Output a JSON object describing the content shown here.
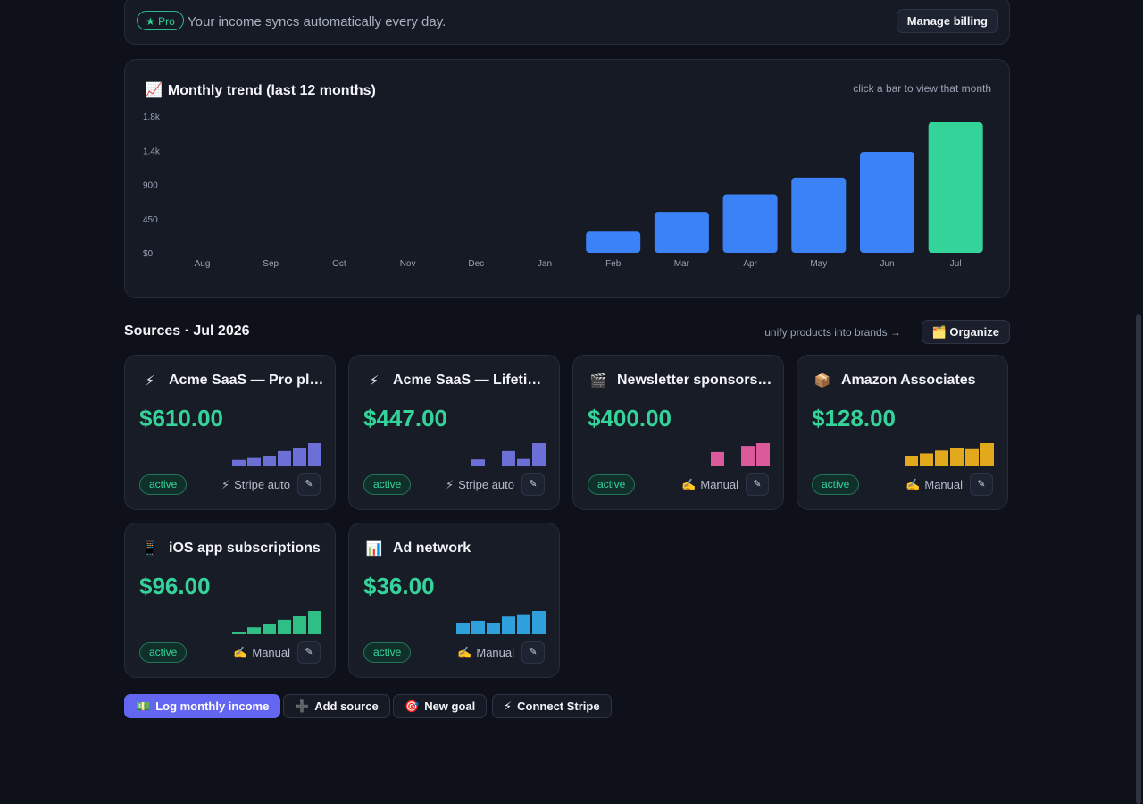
{
  "banner": {
    "pro_label": "★ Pro",
    "text": "Your income syncs automatically every day.",
    "billing_label": "Manage billing"
  },
  "chart": {
    "title_emoji": "📈",
    "title": "Monthly trend (last 12 months)",
    "hint": "click a bar to view that month"
  },
  "chart_data": {
    "type": "bar",
    "title": "Monthly trend (last 12 months)",
    "categories": [
      "Aug",
      "Sep",
      "Oct",
      "Nov",
      "Dec",
      "Jan",
      "Feb",
      "Mar",
      "Apr",
      "May",
      "Jun",
      "Jul"
    ],
    "values": [
      0,
      0,
      0,
      0,
      0,
      0,
      280,
      540,
      770,
      990,
      1330,
      1717
    ],
    "y_ticks": [
      "$0",
      "450",
      "900",
      "1.4k",
      "1.8k"
    ],
    "y_tick_values": [
      0,
      450,
      900,
      1350,
      1800
    ],
    "ylim": [
      0,
      1800
    ],
    "highlight_index": 11,
    "colors": {
      "bar": "#3b82f6",
      "highlight": "#34d399"
    },
    "grid": false
  },
  "sources": {
    "title": "Sources · Jul 2026",
    "organize_hint": "unify products into brands →",
    "organize_icon": "🗂️",
    "organize_label": "Organize",
    "cards": [
      {
        "icon": "⚡",
        "title": "Acme SaaS — Pro plan",
        "amount": "$610.00",
        "status": "active",
        "source_icon": "⚡",
        "source": "Stripe auto",
        "edit_icon": "✎",
        "spark_color": "#6b6fd6",
        "spark": [
          0.28,
          0.36,
          0.46,
          0.66,
          0.8,
          1.0
        ]
      },
      {
        "icon": "⚡",
        "title": "Acme SaaS — Lifetime deal",
        "amount": "$447.00",
        "status": "active",
        "source_icon": "⚡",
        "source": "Stripe auto",
        "edit_icon": "✎",
        "spark_color": "#6b6fd6",
        "spark": [
          0,
          0,
          0.3,
          0,
          0.66,
          0.32,
          1.0
        ]
      },
      {
        "icon": "🎬",
        "title": "Newsletter sponsorships",
        "amount": "$400.00",
        "status": "active",
        "source_icon": "✍️",
        "source": "Manual",
        "edit_icon": "✎",
        "spark_color": "#db5a9c",
        "spark": [
          0,
          0,
          0.62,
          0,
          0.88,
          1.0
        ]
      },
      {
        "icon": "📦",
        "title": "Amazon Associates",
        "amount": "$128.00",
        "status": "active",
        "source_icon": "✍️",
        "source": "Manual",
        "edit_icon": "✎",
        "spark_color": "#e2a91d",
        "spark": [
          0.46,
          0.56,
          0.68,
          0.8,
          0.74,
          1.0
        ]
      },
      {
        "icon": "📱",
        "title": "iOS app subscriptions",
        "amount": "$96.00",
        "status": "active",
        "source_icon": "✍️",
        "source": "Manual",
        "edit_icon": "✎",
        "spark_color": "#2fbf84",
        "spark": [
          0.08,
          0.3,
          0.46,
          0.62,
          0.8,
          1.0
        ]
      },
      {
        "icon": "📊",
        "title": "Ad network",
        "amount": "$36.00",
        "status": "active",
        "source_icon": "✍️",
        "source": "Manual",
        "edit_icon": "✎",
        "spark_color": "#2ea0dc",
        "spark": [
          0.5,
          0.58,
          0.5,
          0.76,
          0.86,
          1.0
        ]
      }
    ]
  },
  "actions": {
    "log": {
      "icon": "💵",
      "label": "Log monthly income"
    },
    "add": {
      "icon": "➕",
      "label": "Add source"
    },
    "goal": {
      "icon": "🎯",
      "label": "New goal"
    },
    "stripe": {
      "icon": "⚡",
      "label": "Connect Stripe"
    }
  }
}
